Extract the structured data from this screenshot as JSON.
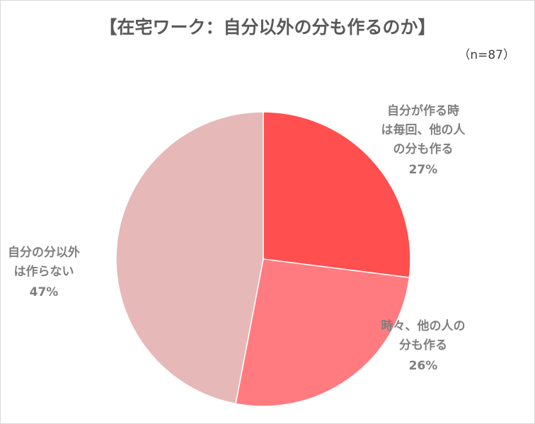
{
  "chart_data": {
    "type": "pie",
    "title": "【在宅ワーク：自分以外の分も作るのか】",
    "subtitle": "（n=87）",
    "categories": [
      [
        "自分が作る時",
        "は毎回、他の人",
        "の分も作る"
      ],
      [
        "時々、他の人の",
        "分も作る"
      ],
      [
        "自分の分以外",
        "は作らない"
      ]
    ],
    "values": [
      27,
      26,
      47
    ],
    "value_labels": [
      "27%",
      "26%",
      "47%"
    ],
    "colors": [
      "#ff4f4f",
      "#ff7b80",
      "#e6b8b7"
    ]
  }
}
